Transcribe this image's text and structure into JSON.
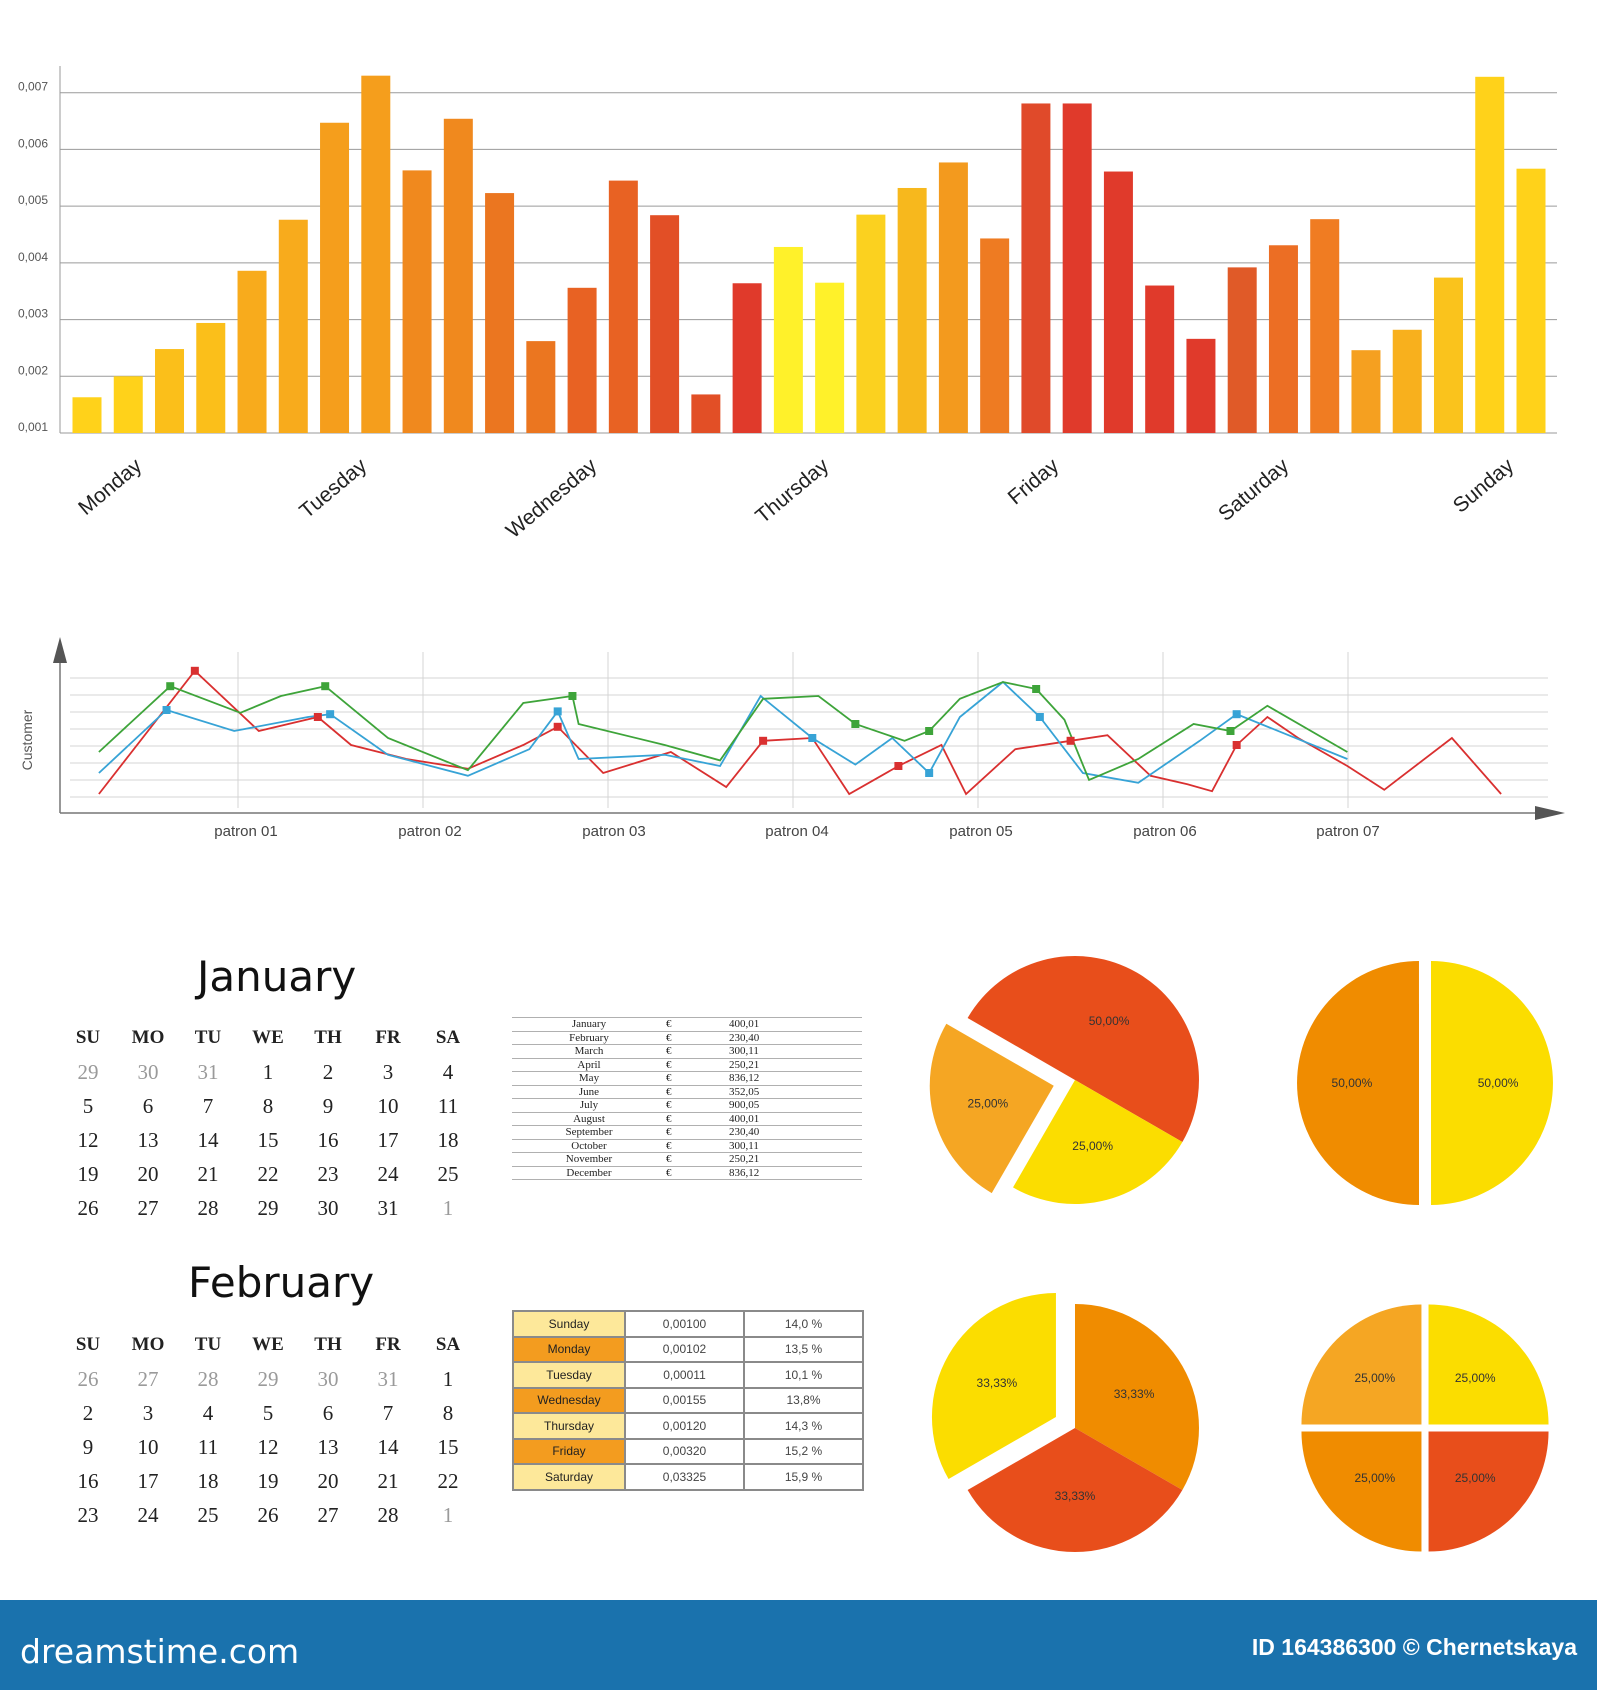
{
  "charts": {
    "bar": {
      "type": "bar",
      "y_ticks": [
        "0,001",
        "0,002",
        "0,003",
        "0,004",
        "0,005",
        "0,006",
        "0,007"
      ],
      "ylim": [
        0.001,
        0.0074
      ],
      "day_labels": [
        "Monday",
        "Tuesday",
        "Wednesday",
        "Thursday",
        "Friday",
        "Saturday",
        "Sunday"
      ],
      "values": [
        0.00163,
        0.002,
        0.00248,
        0.00294,
        0.00386,
        0.00476,
        0.00647,
        0.0073,
        0.00563,
        0.00654,
        0.00523,
        0.00262,
        0.00356,
        0.00545,
        0.00484,
        0.00168,
        0.00364,
        0.00428,
        0.00365,
        0.00485,
        0.00532,
        0.00577,
        0.00443,
        0.00681,
        0.00681,
        0.00561,
        0.0036,
        0.00266,
        0.00392,
        0.00431,
        0.00477,
        0.00246,
        0.00282,
        0.00374,
        0.00728,
        0.00566
      ],
      "colors": [
        "#ffd21a",
        "#ffd21a",
        "#fbbf1a",
        "#fbbf1a",
        "#f8ab1c",
        "#f8ab1c",
        "#f59e1c",
        "#f59e1c",
        "#f0891e",
        "#f0891e",
        "#eb7620",
        "#eb7620",
        "#e86223",
        "#e86223",
        "#e24f26",
        "#e24f26",
        "#e03a2b",
        "#fff12a",
        "#fff12a",
        "#fbd11f",
        "#f7b81d",
        "#f39a1e",
        "#ee7b22",
        "#e04a2a",
        "#e03a2b",
        "#e03a2b",
        "#e03a2b",
        "#e03a2b",
        "#e05a28",
        "#ec6e24",
        "#f07c22",
        "#f5a020",
        "#f8b01d",
        "#fac31c",
        "#ffd21a",
        "#ffd21a"
      ]
    },
    "line": {
      "type": "line",
      "ylabel": "Customer",
      "x_labels": [
        "patron 01",
        "patron 02",
        "patron 03",
        "patron 04",
        "patron 05",
        "patron 06",
        "patron 07"
      ],
      "ylim": [
        0,
        10
      ],
      "series": [
        {
          "color": "#d93030",
          "values": [
            [
              0.3,
              1.0
            ],
            [
              1.08,
              9.8
            ],
            [
              1.6,
              5.5
            ],
            [
              2.08,
              6.5
            ],
            [
              2.35,
              4.5
            ],
            [
              2.8,
              3.5
            ],
            [
              3.3,
              2.8
            ],
            [
              3.75,
              4.5
            ],
            [
              4.03,
              5.8
            ],
            [
              4.4,
              2.5
            ],
            [
              4.95,
              4.0
            ],
            [
              5.4,
              1.5
            ],
            [
              5.7,
              4.8
            ],
            [
              6.1,
              5.0
            ],
            [
              6.4,
              1.0
            ],
            [
              6.8,
              3.0
            ],
            [
              7.15,
              4.5
            ],
            [
              7.35,
              1.0
            ],
            [
              7.75,
              4.2
            ],
            [
              8.2,
              4.8
            ],
            [
              8.5,
              5.2
            ],
            [
              8.85,
              2.3
            ],
            [
              9.15,
              1.7
            ],
            [
              9.35,
              1.2
            ],
            [
              9.55,
              4.5
            ],
            [
              9.8,
              6.5
            ],
            [
              10.05,
              5.0
            ],
            [
              10.45,
              3.0
            ],
            [
              10.75,
              1.3
            ],
            [
              11.3,
              5.0
            ],
            [
              11.7,
              1.0
            ]
          ]
        },
        {
          "color": "#37a3d6",
          "values": [
            [
              0.3,
              2.5
            ],
            [
              0.85,
              7.0
            ],
            [
              1.4,
              5.5
            ],
            [
              2.0,
              6.5
            ],
            [
              2.18,
              6.7
            ],
            [
              2.65,
              3.8
            ],
            [
              3.3,
              2.3
            ],
            [
              3.8,
              4.2
            ],
            [
              4.03,
              6.9
            ],
            [
              4.2,
              3.5
            ],
            [
              4.9,
              3.8
            ],
            [
              5.35,
              3.0
            ],
            [
              5.68,
              8.0
            ],
            [
              6.1,
              5.0
            ],
            [
              6.45,
              3.1
            ],
            [
              6.75,
              5.0
            ],
            [
              7.05,
              2.5
            ],
            [
              7.3,
              6.5
            ],
            [
              7.65,
              9.0
            ],
            [
              7.95,
              6.5
            ],
            [
              8.3,
              2.5
            ],
            [
              8.75,
              1.8
            ],
            [
              9.25,
              4.8
            ],
            [
              9.55,
              6.7
            ],
            [
              10.45,
              3.5
            ]
          ]
        },
        {
          "color": "#3ea43a",
          "values": [
            [
              0.3,
              4.0
            ],
            [
              0.88,
              8.7
            ],
            [
              1.45,
              6.8
            ],
            [
              1.78,
              8.0
            ],
            [
              2.14,
              8.7
            ],
            [
              2.65,
              5.0
            ],
            [
              3.3,
              2.7
            ],
            [
              3.75,
              7.5
            ],
            [
              4.15,
              8.0
            ],
            [
              4.2,
              6.0
            ],
            [
              4.9,
              4.5
            ],
            [
              5.35,
              3.4
            ],
            [
              5.7,
              7.8
            ],
            [
              6.15,
              8.0
            ],
            [
              6.45,
              6.0
            ],
            [
              6.85,
              4.8
            ],
            [
              7.05,
              5.5
            ],
            [
              7.3,
              7.8
            ],
            [
              7.65,
              9.0
            ],
            [
              7.92,
              8.5
            ],
            [
              8.15,
              6.3
            ],
            [
              8.35,
              2.0
            ],
            [
              8.75,
              3.5
            ],
            [
              9.2,
              6.0
            ],
            [
              9.5,
              5.5
            ],
            [
              9.8,
              7.3
            ],
            [
              10.45,
              4.0
            ]
          ]
        }
      ]
    },
    "pies": [
      {
        "type": "pie",
        "labels": [
          "50,00%",
          "25,00%",
          "25,00%"
        ],
        "values": [
          50,
          25,
          25
        ],
        "colors": [
          "#e84e1b",
          "#fbdd00",
          "#f5a623"
        ]
      },
      {
        "type": "pie",
        "labels": [
          "50,00%",
          "50,00%"
        ],
        "values": [
          50,
          50
        ],
        "colors": [
          "#fbdd00",
          "#f08c00"
        ]
      },
      {
        "type": "pie",
        "labels": [
          "33,33%",
          "33,33%",
          "33,33%"
        ],
        "values": [
          33.33,
          33.33,
          33.33
        ],
        "colors": [
          "#f08c00",
          "#e84e1b",
          "#fbdd00"
        ]
      },
      {
        "type": "pie",
        "labels": [
          "25,00%",
          "25,00%",
          "25,00%",
          "25,00%"
        ],
        "values": [
          25,
          25,
          25,
          25
        ],
        "colors": [
          "#fbdd00",
          "#e84e1b",
          "#f08c00",
          "#f5a623"
        ]
      }
    ]
  },
  "calendar_headers": [
    "SU",
    "MO",
    "TU",
    "WE",
    "TH",
    "FR",
    "SA"
  ],
  "calendars": [
    {
      "month": "January",
      "weeks": [
        [
          "29",
          "30",
          "31",
          "1",
          "2",
          "3",
          "4"
        ],
        [
          "5",
          "6",
          "7",
          "8",
          "9",
          "10",
          "11"
        ],
        [
          "12",
          "13",
          "14",
          "15",
          "16",
          "17",
          "18"
        ],
        [
          "19",
          "20",
          "21",
          "22",
          "23",
          "24",
          "25"
        ],
        [
          "26",
          "27",
          "28",
          "29",
          "30",
          "31",
          "1"
        ]
      ]
    },
    {
      "month": "February",
      "weeks": [
        [
          "26",
          "27",
          "28",
          "29",
          "30",
          "31",
          "1"
        ],
        [
          "2",
          "3",
          "4",
          "5",
          "6",
          "7",
          "8"
        ],
        [
          "9",
          "10",
          "11",
          "12",
          "13",
          "14",
          "15"
        ],
        [
          "16",
          "17",
          "18",
          "19",
          "20",
          "21",
          "22"
        ],
        [
          "23",
          "24",
          "25",
          "26",
          "27",
          "28",
          "1"
        ]
      ]
    }
  ],
  "month_table": [
    [
      "January",
      "€",
      "400,01"
    ],
    [
      "February",
      "€",
      "230,40"
    ],
    [
      "March",
      "€",
      "300,11"
    ],
    [
      "April",
      "€",
      "250,21"
    ],
    [
      "May",
      "€",
      "836,12"
    ],
    [
      "June",
      "€",
      "352,05"
    ],
    [
      "July",
      "€",
      "900,05"
    ],
    [
      "August",
      "€",
      "400,01"
    ],
    [
      "September",
      "€",
      "230,40"
    ],
    [
      "October",
      "€",
      "300,11"
    ],
    [
      "November",
      "€",
      "250,21"
    ],
    [
      "December",
      "€",
      "836,12"
    ]
  ],
  "day_table": [
    [
      "Sunday",
      "0,00100",
      "14,0 %"
    ],
    [
      "Monday",
      "0,00102",
      "13,5 %"
    ],
    [
      "Tuesday",
      "0,00011",
      "10,1 %"
    ],
    [
      "Wednesday",
      "0,00155",
      "13,8%"
    ],
    [
      "Thursday",
      "0,00120",
      "14,3 %"
    ],
    [
      "Friday",
      "0,00320",
      "15,2 %"
    ],
    [
      "Saturday",
      "0,03325",
      "15,9 %"
    ]
  ],
  "day_table_colors": [
    "#fde89a",
    "#f39c1f"
  ],
  "footer": {
    "logo": "dreamstime.com",
    "credit": "ID 164386300 © Chernetskaya",
    "color": "#1a72ad"
  }
}
